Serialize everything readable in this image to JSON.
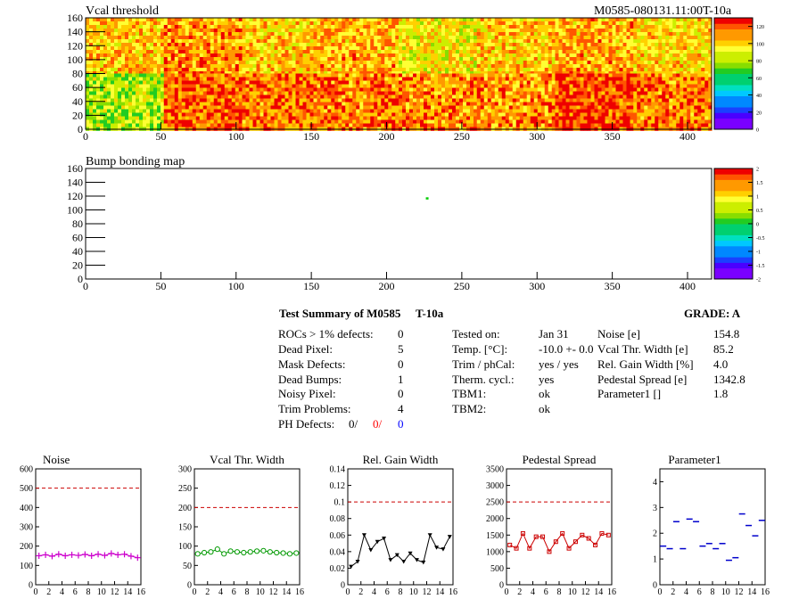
{
  "header": {
    "map1_title": "Vcal threshold",
    "module_id": "M0585-080131.11:00T-10a",
    "map2_title": "Bump bonding map"
  },
  "colors": {
    "ref_line": "#cc0000",
    "noise_series": "#cc00cc",
    "vcal_series": "#009900",
    "gain_series": "#000000",
    "ped_series": "#cc0000",
    "param_series": "#0000cc",
    "bump_pixel": "#00cc00"
  },
  "summary": {
    "title": "Test Summary of M0585",
    "temp_tag": "T-10a",
    "grade": "GRADE:  A",
    "rows_left": [
      {
        "label": "ROCs > 1% defects:",
        "value": "0"
      },
      {
        "label": "Dead Pixel:",
        "value": "5"
      },
      {
        "label": "Mask Defects:",
        "value": "0"
      },
      {
        "label": "Dead Bumps:",
        "value": "1"
      },
      {
        "label": "Noisy Pixel:",
        "value": "0"
      },
      {
        "label": "Trim Problems:",
        "value": "4"
      }
    ],
    "ph_defects": {
      "label": "PH Defects:",
      "v1": "0/",
      "v2": "0/",
      "v3": "0"
    },
    "rows_mid": [
      {
        "label": "Tested on:",
        "value": "Jan 31"
      },
      {
        "label": "Temp. [°C]:",
        "value": "-10.0 +- 0.0"
      },
      {
        "label": "Trim / phCal:",
        "value": "yes / yes"
      },
      {
        "label": "Therm. cycl.:",
        "value": "yes"
      },
      {
        "label": "TBM1:",
        "value": "ok"
      },
      {
        "label": "TBM2:",
        "value": "ok"
      }
    ],
    "rows_right": [
      {
        "label": "Noise [e]",
        "value": "154.8"
      },
      {
        "label": "Vcal Thr. Width [e]",
        "value": "85.2"
      },
      {
        "label": "Rel. Gain Width [%]",
        "value": "4.0"
      },
      {
        "label": "Pedestal Spread [e]",
        "value": "1342.8"
      },
      {
        "label": "Parameter1 []",
        "value": "1.8"
      }
    ]
  },
  "chart_data": [
    {
      "type": "heatmap",
      "title": "Vcal threshold",
      "xlim": [
        0,
        416
      ],
      "ylim": [
        0,
        160
      ],
      "xticks": [
        0,
        50,
        100,
        150,
        200,
        250,
        300,
        350,
        400
      ],
      "yticks": [
        0,
        20,
        40,
        60,
        80,
        100,
        120,
        140,
        160
      ],
      "zticks": [
        0,
        20,
        40,
        60,
        80,
        100,
        120
      ],
      "zlim": [
        0,
        130
      ],
      "roc_means_top": [
        100,
        108,
        100,
        104,
        92,
        100,
        104,
        96
      ],
      "roc_means_bottom": [
        80,
        115,
        112,
        112,
        110,
        108,
        120,
        112
      ]
    },
    {
      "type": "heatmap",
      "title": "Bump bonding map",
      "xlim": [
        0,
        416
      ],
      "ylim": [
        0,
        160
      ],
      "xticks": [
        0,
        50,
        100,
        150,
        200,
        250,
        300,
        350,
        400
      ],
      "yticks": [
        0,
        20,
        40,
        60,
        80,
        100,
        120,
        140,
        160
      ],
      "zticks": [
        "-2",
        "-1.5",
        "-1",
        "-0.5",
        "0",
        "0.5",
        "1",
        "1.5",
        "2"
      ],
      "zlim": [
        -2,
        2
      ],
      "hits": [
        {
          "x": 227,
          "y": 117,
          "z": 0.3
        }
      ]
    },
    {
      "type": "line",
      "title": "Noise",
      "x": [
        0,
        1,
        2,
        3,
        4,
        5,
        6,
        7,
        8,
        9,
        10,
        11,
        12,
        13,
        14,
        15
      ],
      "values": [
        150,
        155,
        148,
        158,
        150,
        155,
        152,
        157,
        150,
        158,
        152,
        162,
        155,
        158,
        148,
        140
      ],
      "ylim": [
        0,
        600
      ],
      "yticks": [
        0,
        100,
        200,
        300,
        400,
        500,
        600
      ],
      "ref": 500,
      "xlim": [
        0,
        16
      ],
      "xticks": [
        0,
        2,
        4,
        6,
        8,
        10,
        12,
        14,
        16
      ],
      "marker": "cross"
    },
    {
      "type": "line",
      "title": "Vcal Thr. Width",
      "x": [
        0,
        1,
        2,
        3,
        4,
        5,
        6,
        7,
        8,
        9,
        10,
        11,
        12,
        13,
        14,
        15
      ],
      "values": [
        80,
        83,
        85,
        92,
        80,
        87,
        85,
        83,
        85,
        87,
        88,
        85,
        83,
        82,
        80,
        82
      ],
      "ylim": [
        0,
        300
      ],
      "yticks": [
        0,
        50,
        100,
        150,
        200,
        250,
        300
      ],
      "ref": 200,
      "xlim": [
        0,
        16
      ],
      "xticks": [
        0,
        2,
        4,
        6,
        8,
        10,
        12,
        14,
        16
      ],
      "marker": "circle"
    },
    {
      "type": "line",
      "title": "Rel. Gain Width",
      "x": [
        0,
        1,
        2,
        3,
        4,
        5,
        6,
        7,
        8,
        9,
        10,
        11,
        12,
        13,
        14,
        15
      ],
      "values": [
        0.022,
        0.028,
        0.06,
        0.042,
        0.052,
        0.056,
        0.03,
        0.036,
        0.028,
        0.038,
        0.03,
        0.027,
        0.06,
        0.045,
        0.043,
        0.058
      ],
      "ylim": [
        0,
        0.14
      ],
      "yticks": [
        "0",
        "0.02",
        "0.04",
        "0.06",
        "0.08",
        "0.1",
        "0.12",
        "0.14"
      ],
      "ref": 0.1,
      "xlim": [
        0,
        16
      ],
      "xticks": [
        0,
        2,
        4,
        6,
        8,
        10,
        12,
        14,
        16
      ],
      "marker": "triangle"
    },
    {
      "type": "line",
      "title": "Pedestal Spread",
      "x": [
        0,
        1,
        2,
        3,
        4,
        5,
        6,
        7,
        8,
        9,
        10,
        11,
        12,
        13,
        14,
        15
      ],
      "values": [
        1200,
        1100,
        1550,
        1100,
        1450,
        1450,
        1000,
        1300,
        1550,
        1100,
        1300,
        1500,
        1400,
        1200,
        1550,
        1500
      ],
      "ylim": [
        0,
        3500
      ],
      "yticks": [
        0,
        500,
        1000,
        1500,
        2000,
        2500,
        3000,
        3500
      ],
      "ref": 2500,
      "xlim": [
        0,
        16
      ],
      "xticks": [
        0,
        2,
        4,
        6,
        8,
        10,
        12,
        14,
        16
      ],
      "marker": "square"
    },
    {
      "type": "scatter",
      "title": "Parameter1",
      "x": [
        0,
        1,
        2,
        3,
        4,
        5,
        6,
        7,
        8,
        9,
        10,
        11,
        12,
        13,
        14,
        15
      ],
      "values": [
        1.5,
        1.4,
        2.45,
        1.4,
        2.55,
        2.45,
        1.5,
        1.6,
        1.4,
        1.6,
        0.95,
        1.05,
        2.75,
        2.3,
        1.9,
        2.5
      ],
      "ylim": [
        0,
        4.5
      ],
      "yticks": [
        0,
        1,
        2,
        3,
        4
      ],
      "xlim": [
        0,
        16
      ],
      "xticks": [
        0,
        2,
        4,
        6,
        8,
        10,
        12,
        14,
        16
      ],
      "marker": "hline"
    }
  ]
}
